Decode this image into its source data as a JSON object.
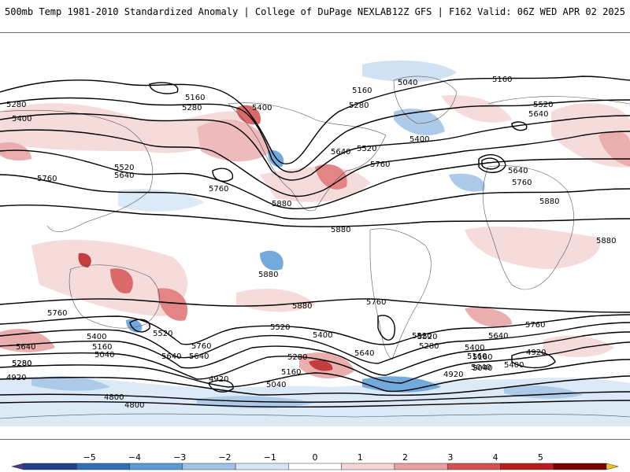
{
  "header": {
    "title": "500mb Temp 1981-2010 Standardized Anomaly | College of DuPage NEXLAB",
    "run_info": "12Z GFS | F162 Valid: 06Z WED APR 02 2025"
  },
  "contour_labels": [
    {
      "text": "5040"
    },
    {
      "text": "5160"
    },
    {
      "text": "5160"
    },
    {
      "text": "5280"
    },
    {
      "text": "5280"
    },
    {
      "text": "5160"
    },
    {
      "text": "5280"
    },
    {
      "text": "5400"
    },
    {
      "text": "5400"
    },
    {
      "text": "5520"
    },
    {
      "text": "5520"
    },
    {
      "text": "5640"
    },
    {
      "text": "5640"
    },
    {
      "text": "5640"
    },
    {
      "text": "5520"
    },
    {
      "text": "5400"
    },
    {
      "text": "5760"
    },
    {
      "text": "5760"
    },
    {
      "text": "5760"
    },
    {
      "text": "5640"
    },
    {
      "text": "5760"
    },
    {
      "text": "5880"
    },
    {
      "text": "5880"
    },
    {
      "text": "5880"
    },
    {
      "text": "5880"
    },
    {
      "text": "5880"
    },
    {
      "text": "5880"
    },
    {
      "text": "5760"
    },
    {
      "text": "5760"
    },
    {
      "text": "5400"
    },
    {
      "text": "5520"
    },
    {
      "text": "5520"
    },
    {
      "text": "5760"
    },
    {
      "text": "5640"
    },
    {
      "text": "5160"
    },
    {
      "text": "5040"
    },
    {
      "text": "5640"
    },
    {
      "text": "5280"
    },
    {
      "text": "5400"
    },
    {
      "text": "5640"
    },
    {
      "text": "5520"
    },
    {
      "text": "5280"
    },
    {
      "text": "5400"
    },
    {
      "text": "5160"
    },
    {
      "text": "5040"
    },
    {
      "text": "5160"
    },
    {
      "text": "5280"
    },
    {
      "text": "4920"
    },
    {
      "text": "5040"
    },
    {
      "text": "4920"
    },
    {
      "text": "5760"
    },
    {
      "text": "5640"
    },
    {
      "text": "5400"
    },
    {
      "text": "5160"
    },
    {
      "text": "5040"
    },
    {
      "text": "4920"
    },
    {
      "text": "5280"
    },
    {
      "text": "4920"
    },
    {
      "text": "4800"
    },
    {
      "text": "4800"
    },
    {
      "text": "5640"
    },
    {
      "text": "5520"
    }
  ],
  "legend": {
    "ticks": [
      "−5",
      "−4",
      "−3",
      "−2",
      "−1",
      "0",
      "1",
      "2",
      "3",
      "4",
      "5"
    ],
    "colors": [
      "#4a3a8c",
      "#1f3f8a",
      "#2f6fb8",
      "#5b9bd5",
      "#9fc2e6",
      "#d6e6f5",
      "#ffffff",
      "#f5d5d5",
      "#e8a0a0",
      "#d45050",
      "#b81c1c",
      "#7a0000",
      "#f0c020"
    ]
  }
}
